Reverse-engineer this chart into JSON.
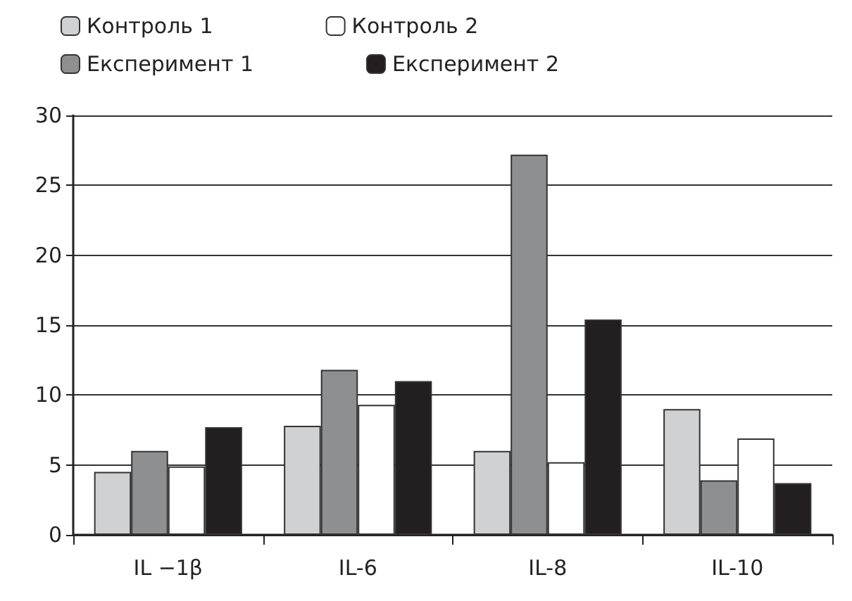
{
  "chart_data": {
    "type": "bar",
    "categories": [
      "IL −1β",
      "IL-6",
      "IL-8",
      "IL-10"
    ],
    "series": [
      {
        "name": "Контроль 1",
        "color": "#d0d1d3",
        "values": [
          4.5,
          7.8,
          6.0,
          9.0
        ]
      },
      {
        "name": "Експеримент 1",
        "color": "#8e8f91",
        "values": [
          6.0,
          11.8,
          27.2,
          3.9
        ]
      },
      {
        "name": "Контроль 2",
        "color": "#ffffff",
        "values": [
          4.9,
          9.3,
          5.2,
          6.9
        ]
      },
      {
        "name": "Експеримент 2",
        "color": "#231f20",
        "values": [
          7.7,
          11.0,
          15.4,
          3.7
        ]
      }
    ],
    "ylim": [
      0,
      30
    ],
    "yticks": [
      0,
      5,
      10,
      15,
      20,
      25,
      30
    ],
    "grid": "y",
    "legend": "top left"
  }
}
